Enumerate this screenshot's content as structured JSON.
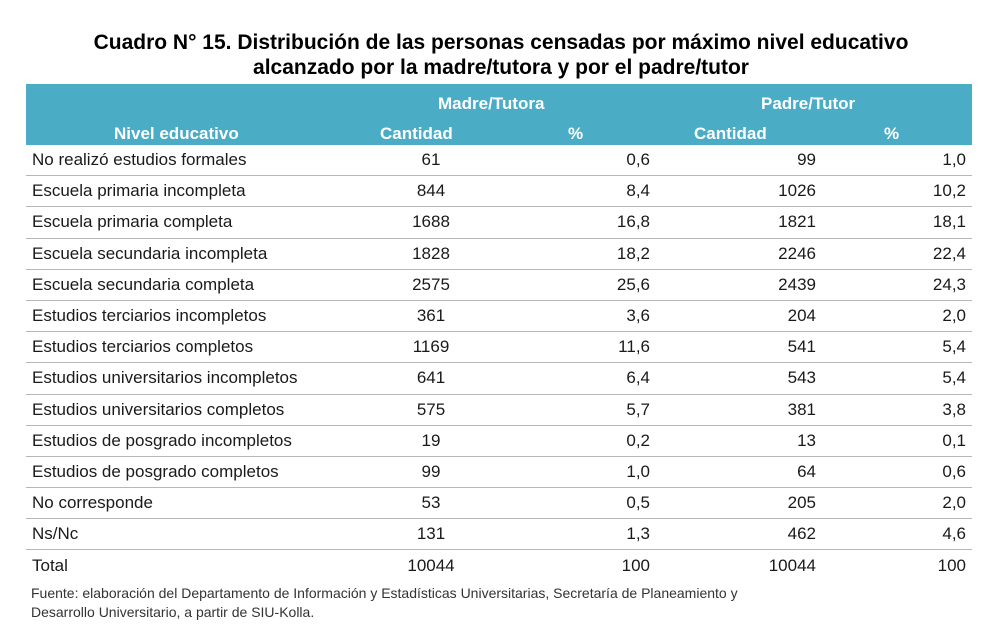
{
  "title": {
    "line1": "Cuadro N° 15. Distribución de las personas censadas por máximo nivel educativo",
    "line2": "alcanzado por la madre/tutora y por el padre/tutor"
  },
  "header": {
    "group_mother": "Madre/Tutora",
    "group_father": "Padre/Tutor",
    "col_level": "Nivel educativo",
    "col_count_mother": "Cantidad",
    "col_pct_mother": "%",
    "col_count_father": "Cantidad",
    "col_pct_father": "%"
  },
  "rows": [
    {
      "level": "No realizó estudios formales",
      "m_count": "61",
      "m_pct": "0,6",
      "f_count": "99",
      "f_pct": "1,0"
    },
    {
      "level": "Escuela primaria incompleta",
      "m_count": "844",
      "m_pct": "8,4",
      "f_count": "1026",
      "f_pct": "10,2"
    },
    {
      "level": "Escuela primaria completa",
      "m_count": "1688",
      "m_pct": "16,8",
      "f_count": "1821",
      "f_pct": "18,1"
    },
    {
      "level": "Escuela secundaria incompleta",
      "m_count": "1828",
      "m_pct": "18,2",
      "f_count": "2246",
      "f_pct": "22,4"
    },
    {
      "level": "Escuela secundaria completa",
      "m_count": "2575",
      "m_pct": "25,6",
      "f_count": "2439",
      "f_pct": "24,3"
    },
    {
      "level": "Estudios terciarios incompletos",
      "m_count": "361",
      "m_pct": "3,6",
      "f_count": "204",
      "f_pct": "2,0"
    },
    {
      "level": "Estudios terciarios completos",
      "m_count": "1169",
      "m_pct": "11,6",
      "f_count": "541",
      "f_pct": "5,4"
    },
    {
      "level": "Estudios universitarios incompletos",
      "m_count": "641",
      "m_pct": "6,4",
      "f_count": "543",
      "f_pct": "5,4"
    },
    {
      "level": "Estudios universitarios completos",
      "m_count": "575",
      "m_pct": "5,7",
      "f_count": "381",
      "f_pct": "3,8"
    },
    {
      "level": "Estudios de posgrado incompletos",
      "m_count": "19",
      "m_pct": "0,2",
      "f_count": "13",
      "f_pct": "0,1"
    },
    {
      "level": "Estudios de posgrado completos",
      "m_count": "99",
      "m_pct": "1,0",
      "f_count": "64",
      "f_pct": "0,6"
    },
    {
      "level": "No corresponde",
      "m_count": "53",
      "m_pct": "0,5",
      "f_count": "205",
      "f_pct": "2,0"
    },
    {
      "level": "Ns/Nc",
      "m_count": "131",
      "m_pct": "1,3",
      "f_count": "462",
      "f_pct": "4,6"
    },
    {
      "level": "Total",
      "m_count": "10044",
      "m_pct": "100",
      "f_count": "10044",
      "f_pct": "100"
    }
  ],
  "source": {
    "line1": "Fuente: elaboración del Departamento de Información y Estadísticas Universitarias, Secretaría de Planeamiento y",
    "line2": "Desarrollo Universitario, a partir de  SIU-Kolla."
  },
  "colors": {
    "header_bg": "#4bacc6",
    "header_text": "#ffffff",
    "row_border": "#b7b7b7"
  }
}
